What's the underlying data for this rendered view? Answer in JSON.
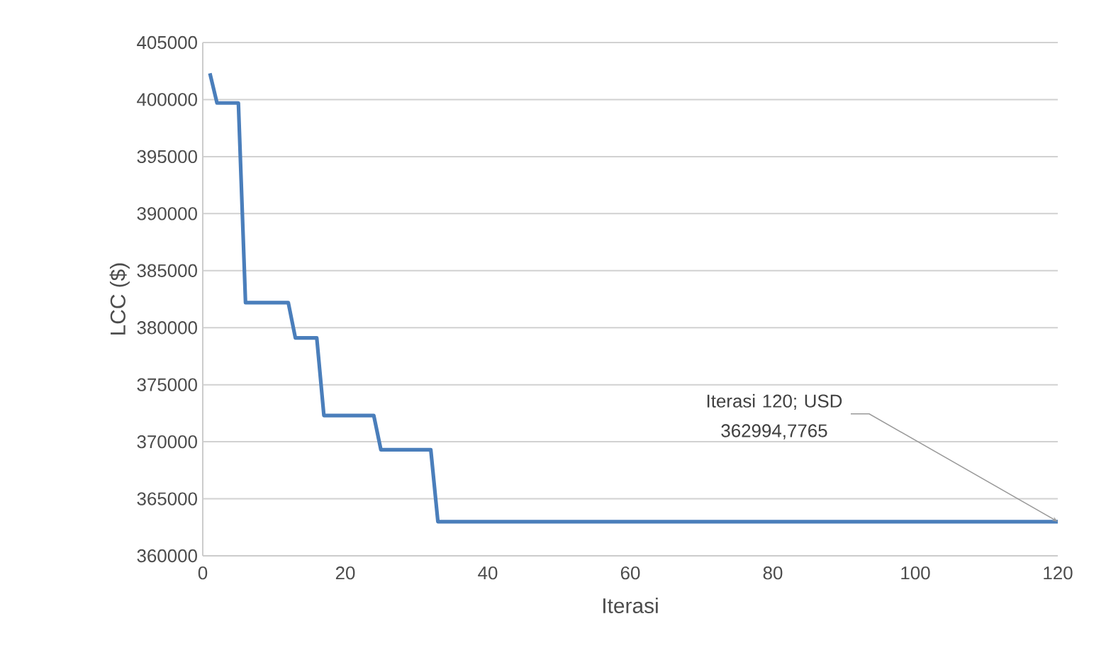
{
  "chart_data": {
    "type": "line",
    "xlabel": "Iterasi",
    "ylabel": "LCC ($)",
    "x": [
      1,
      2,
      5,
      6,
      12,
      13,
      16,
      17,
      24,
      25,
      32,
      33,
      120
    ],
    "series": [
      {
        "color": "#4a7ebb",
        "values": [
          402300,
          399700,
          399700,
          382200,
          382200,
          379100,
          379100,
          372300,
          372300,
          369300,
          369300,
          362994.7765,
          362994.7765
        ]
      }
    ],
    "xlim": [
      0,
      120
    ],
    "xticks": [
      0,
      20,
      40,
      60,
      80,
      100,
      120
    ],
    "ylim": [
      360000,
      405000
    ],
    "yticks": [
      360000,
      365000,
      370000,
      375000,
      380000,
      385000,
      390000,
      395000,
      400000,
      405000
    ],
    "grid": "y",
    "marker": "none",
    "line_style": "solid",
    "annotations": [
      {
        "text": "Iterasi 120; USD 362994,7765",
        "x": 120,
        "y": 362994.7765
      }
    ]
  }
}
